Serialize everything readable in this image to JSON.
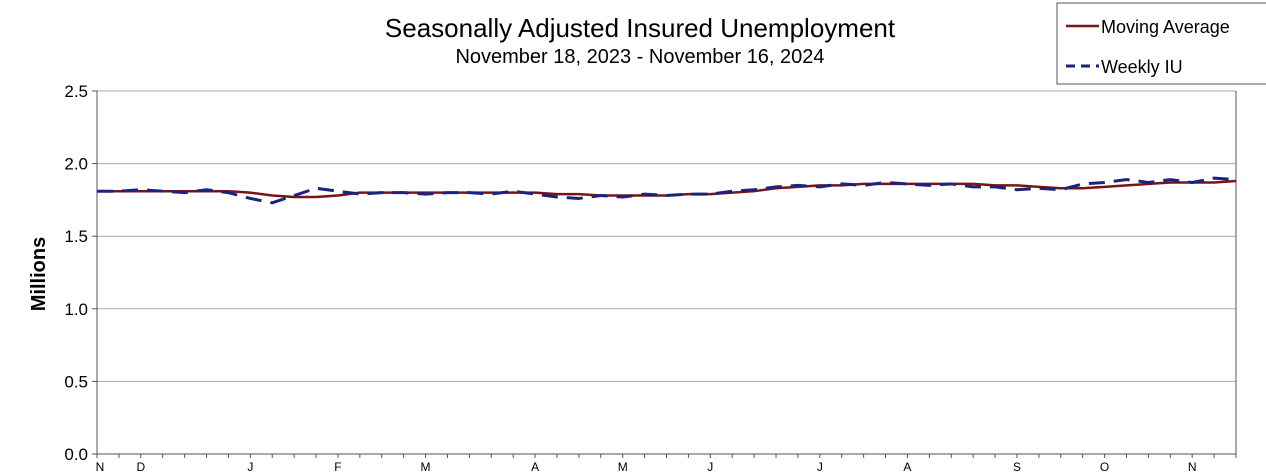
{
  "chart_data": {
    "type": "line",
    "title": "Seasonally Adjusted Insured Unemployment",
    "subtitle": "November 18, 2023 - November 16, 2024",
    "ylabel": "Millions",
    "xlabel": "",
    "ylim": [
      0,
      2.5
    ],
    "yticks": [
      "0.0",
      "0.5",
      "1.0",
      "1.5",
      "2.0",
      "2.5"
    ],
    "ytick_values": [
      0,
      0.5,
      1.0,
      1.5,
      2.0,
      2.5
    ],
    "x_tick_labels": [
      "N",
      "D",
      "J",
      "F",
      "M",
      "A",
      "M",
      "J",
      "J",
      "A",
      "S",
      "O",
      "N"
    ],
    "x_tick_weeks": [
      0,
      2,
      7,
      11,
      15,
      20,
      24,
      28,
      33,
      37,
      42,
      46,
      50
    ],
    "grid": true,
    "legend_position": "top-right",
    "series": [
      {
        "name": "Moving Average",
        "color": "#7a1414",
        "style": "solid",
        "values": [
          1.81,
          1.81,
          1.81,
          1.81,
          1.81,
          1.81,
          1.81,
          1.8,
          1.78,
          1.77,
          1.77,
          1.78,
          1.8,
          1.8,
          1.8,
          1.8,
          1.8,
          1.8,
          1.8,
          1.8,
          1.8,
          1.79,
          1.79,
          1.78,
          1.78,
          1.78,
          1.78,
          1.79,
          1.79,
          1.8,
          1.81,
          1.83,
          1.84,
          1.85,
          1.85,
          1.86,
          1.86,
          1.86,
          1.86,
          1.86,
          1.86,
          1.85,
          1.85,
          1.84,
          1.83,
          1.83,
          1.84,
          1.85,
          1.86,
          1.87,
          1.87,
          1.87,
          1.88
        ]
      },
      {
        "name": "Weekly IU",
        "color": "#1a237e",
        "style": "dashed",
        "values": [
          1.81,
          1.81,
          1.82,
          1.81,
          1.8,
          1.82,
          1.8,
          1.76,
          1.73,
          1.78,
          1.83,
          1.81,
          1.79,
          1.8,
          1.8,
          1.79,
          1.8,
          1.8,
          1.79,
          1.81,
          1.79,
          1.77,
          1.76,
          1.78,
          1.77,
          1.79,
          1.78,
          1.79,
          1.79,
          1.81,
          1.82,
          1.84,
          1.85,
          1.84,
          1.86,
          1.85,
          1.87,
          1.86,
          1.85,
          1.86,
          1.84,
          1.84,
          1.82,
          1.83,
          1.82,
          1.86,
          1.87,
          1.89,
          1.87,
          1.89,
          1.87,
          1.9,
          1.89
        ]
      }
    ]
  }
}
